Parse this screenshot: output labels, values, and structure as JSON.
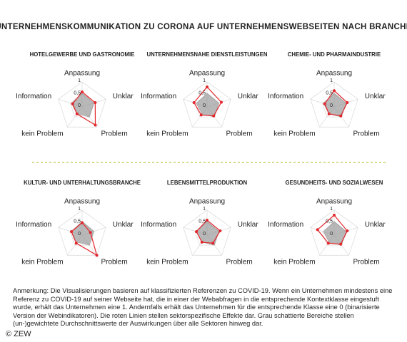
{
  "title": "UNTERNEHMENSKOMMUNIKATION ZU CORONA AUF UNTERNEHMENSWEBSEITEN NACH BRANCHE",
  "chart_data": [
    {
      "type": "radar",
      "title": "HOTELGEWERBE UND GASTRONOMIE",
      "axes": [
        "Anpassung",
        "Unklar",
        "Problem",
        "kein Problem",
        "Information"
      ],
      "rlim": [
        0,
        1
      ],
      "rticks": [
        0,
        {
          "value": 0.5,
          "label": "0,5"
        },
        1
      ],
      "series": [
        {
          "color": "#e3262b",
          "values": [
            0.6,
            0.55,
            0.9,
            0.35,
            0.4
          ]
        },
        {
          "color": "#9a9a9a",
          "values": [
            0.55,
            0.5,
            0.5,
            0.35,
            0.45
          ]
        }
      ]
    },
    {
      "type": "radar",
      "title": "UNTERNEHMENSNAHE DIENSTLEISTUNGEN",
      "axes": [
        "Anpassung",
        "Unklar",
        "Problem",
        "kein Problem",
        "Information"
      ],
      "rlim": [
        0,
        1
      ],
      "rticks": [
        0,
        {
          "value": 0.5,
          "label": "0,5"
        },
        1
      ],
      "series": [
        {
          "color": "#e3262b",
          "values": [
            0.8,
            0.6,
            0.45,
            0.4,
            0.55
          ]
        },
        {
          "color": "#9a9a9a",
          "values": [
            0.55,
            0.5,
            0.5,
            0.35,
            0.45
          ]
        }
      ]
    },
    {
      "type": "radar",
      "title": "CHEMIE- UND PHARMAINDUSTRIE",
      "axes": [
        "Anpassung",
        "Unklar",
        "Problem",
        "kein Problem",
        "Information"
      ],
      "rlim": [
        0,
        1
      ],
      "rticks": [
        0,
        {
          "value": 0.5,
          "label": "0,5"
        },
        1
      ],
      "series": [
        {
          "color": "#e3262b",
          "values": [
            0.65,
            0.55,
            0.45,
            0.35,
            0.4
          ]
        },
        {
          "color": "#9a9a9a",
          "values": [
            0.55,
            0.5,
            0.5,
            0.35,
            0.45
          ]
        }
      ]
    },
    {
      "type": "radar",
      "title": "KULTUR- UND UNTERHALTUNGSBRANCHE",
      "axes": [
        "Anpassung",
        "Unklar",
        "Problem",
        "kein Problem",
        "Information"
      ],
      "rlim": [
        0,
        1
      ],
      "rticks": [
        0,
        {
          "value": 0.5,
          "label": "0,5"
        },
        1
      ],
      "series": [
        {
          "color": "#e3262b",
          "values": [
            0.5,
            0.35,
            1.0,
            0.4,
            0.45
          ]
        },
        {
          "color": "#9a9a9a",
          "values": [
            0.55,
            0.5,
            0.5,
            0.35,
            0.45
          ]
        }
      ]
    },
    {
      "type": "radar",
      "title": "LEBENSMITTELPRODUKTION",
      "axes": [
        "Anpassung",
        "Unklar",
        "Problem",
        "kein Problem",
        "Information"
      ],
      "rlim": [
        0,
        1
      ],
      "rticks": [
        0,
        {
          "value": 0.5,
          "label": "0,5"
        },
        1
      ],
      "series": [
        {
          "color": "#e3262b",
          "values": [
            0.6,
            0.55,
            0.4,
            0.35,
            0.45
          ]
        },
        {
          "color": "#9a9a9a",
          "values": [
            0.55,
            0.5,
            0.5,
            0.35,
            0.45
          ]
        }
      ]
    },
    {
      "type": "radar",
      "title": "GESUNDHEITS- UND SOZIALWESEN",
      "axes": [
        "Anpassung",
        "Unklar",
        "Problem",
        "kein Problem",
        "Information"
      ],
      "rlim": [
        0,
        1
      ],
      "rticks": [
        0,
        {
          "value": 0.5,
          "label": "0,5"
        },
        1
      ],
      "series": [
        {
          "color": "#e3262b",
          "values": [
            0.8,
            0.55,
            0.45,
            0.4,
            0.7
          ]
        },
        {
          "color": "#9a9a9a",
          "values": [
            0.55,
            0.5,
            0.5,
            0.35,
            0.45
          ]
        }
      ]
    }
  ],
  "note": "Anmerkung: Die Visualisierungen basieren auf klassifizierten Referenzen zu COVID-19. Wenn ein Unternehmen mindestens eine Referenz zu COVID-19 auf seiner Webseite hat, die in einer der Webabfragen in die entsprechende Kontextklasse eingestuft wurde, erhält das Unternehmen eine 1. Andernfalls erhält das Unternehmen für die entsprechende Klasse eine 0 (binarisierte Version der Webindikatoren). Die roten Linien stellen sektorspezifische Effekte dar. Grau schattierte Bereiche stellen (un-)gewichtete Durchschnittswerte der Auswirkungen über alle Sektoren hinweg dar.",
  "source": "© ZEW"
}
